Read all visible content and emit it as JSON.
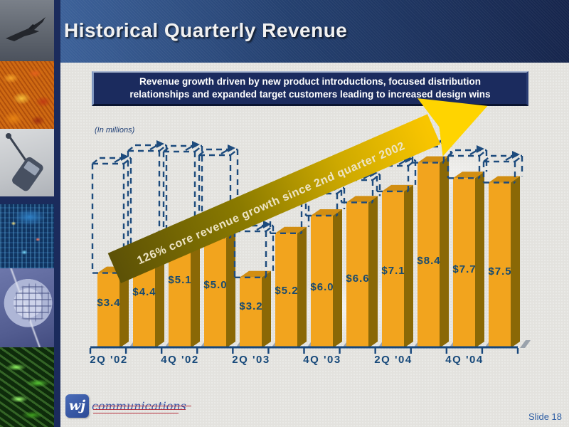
{
  "slide": {
    "title": "Historical Quarterly Revenue",
    "subtitle_line1": "Revenue growth driven by new product introductions, focused distribution",
    "subtitle_line2": "relationships and expanded target customers leading to increased design wins",
    "units_note": "(In millions)",
    "slide_number": "Slide 18"
  },
  "logo": {
    "monogram": "wj",
    "name": "communications"
  },
  "sidebar": {
    "photos": [
      "fighter-jet",
      "autumn-foliage",
      "mobile-phone",
      "blue-circuit-board",
      "silicon-wafer",
      "green-circuit-board"
    ]
  },
  "chart_data": {
    "type": "bar",
    "title": "Historical Quarterly Revenue",
    "units": "millions of dollars",
    "values": [
      3.4,
      4.4,
      5.1,
      5.0,
      3.2,
      5.2,
      6.0,
      6.6,
      7.1,
      8.4,
      7.7,
      7.5
    ],
    "value_labels": [
      "$3.4",
      "$4.4",
      "$5.1",
      "$5.0",
      "$3.2",
      "$5.2",
      "$6.0",
      "$6.6",
      "$7.1",
      "$8.4",
      "$7.7",
      "$7.5"
    ],
    "x_tick_labels": [
      "2Q '02",
      "4Q '02",
      "2Q '03",
      "4Q '03",
      "2Q '04",
      "4Q '04"
    ],
    "x_tick_every_n_bars": 2,
    "annotation": "126% core revenue growth since 2nd quarter 2002",
    "ylim": [
      0,
      9
    ],
    "grid": false,
    "legend": false,
    "colors": {
      "bar_front": "#f2a41e",
      "bar_side": "#8a6806",
      "bar_top": "#d28e12",
      "bar_shadow": "#9aa2ac",
      "dashed_outline": "#1d4b7d",
      "axis": "#17477c",
      "label_text": "#174a70",
      "arrow_dark": "#5c5106",
      "arrow_bright": "#ffd400",
      "arrow_text": "#ede4c4"
    }
  }
}
